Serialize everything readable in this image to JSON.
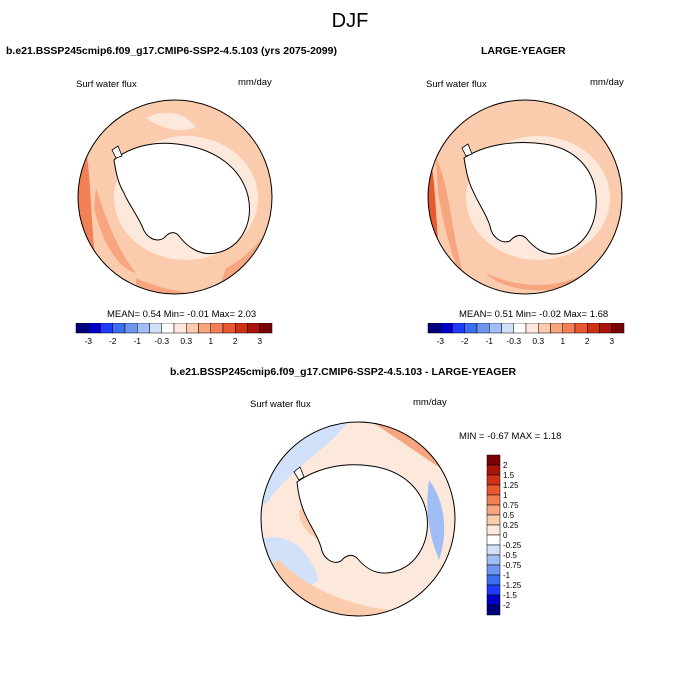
{
  "figure": {
    "title": "DJF"
  },
  "colors": {
    "land": "#ffffff",
    "coast": "#000000",
    "scale": [
      "#00007f",
      "#0000c8",
      "#1e3cff",
      "#3c6ef0",
      "#6e96f0",
      "#a0bef5",
      "#d2e1fa",
      "#ffffff",
      "#fde9dc",
      "#fbcbad",
      "#f7a57e",
      "#f28055",
      "#e8592f",
      "#d03217",
      "#a8150b",
      "#7a0403"
    ]
  },
  "chart_data": [
    {
      "type": "heatmap",
      "panel": "top-left",
      "title": "b.e21.BSSP245cmip6.f09_g17.CMIP6-SSP2-4.5.103 (yrs 2075-2099)",
      "variable": "Surf water flux",
      "units": "mm/day",
      "stats": {
        "mean_label": "MEAN=",
        "mean": "0.54",
        "min_label": "Min=",
        "min": "-0.01",
        "max_label": "Max=",
        "max": "2.03"
      },
      "colorbar_ticks": [
        "-3",
        "-2",
        "-1",
        "-0.3",
        "0.3",
        "1",
        "2",
        "3"
      ],
      "projection": "south-polar stereographic"
    },
    {
      "type": "heatmap",
      "panel": "top-right",
      "title": "LARGE-YEAGER",
      "variable": "Surf water flux",
      "units": "mm/day",
      "stats": {
        "mean_label": "MEAN=",
        "mean": "0.51",
        "min_label": "Min=",
        "min": "-0.02",
        "max_label": "Max=",
        "max": "1.68"
      },
      "colorbar_ticks": [
        "-3",
        "-2",
        "-1",
        "-0.3",
        "0.3",
        "1",
        "2",
        "3"
      ],
      "projection": "south-polar stereographic"
    },
    {
      "type": "heatmap",
      "panel": "bottom",
      "title": "b.e21.BSSP245cmip6.f09_g17.CMIP6-SSP2-4.5.103 - LARGE-YEAGER",
      "variable": "Surf water flux",
      "units": "mm/day",
      "stats": {
        "min_label": "MIN =",
        "min": "-0.67",
        "max_label": "MAX =",
        "max": "1.18"
      },
      "colorbar_ticks": [
        "2",
        "1.5",
        "1.25",
        "1",
        "0.75",
        "0.5",
        "0.25",
        "0",
        "-0.25",
        "-0.5",
        "-0.75",
        "-1",
        "-1.25",
        "-1.5",
        "-2"
      ],
      "projection": "south-polar stereographic"
    }
  ]
}
